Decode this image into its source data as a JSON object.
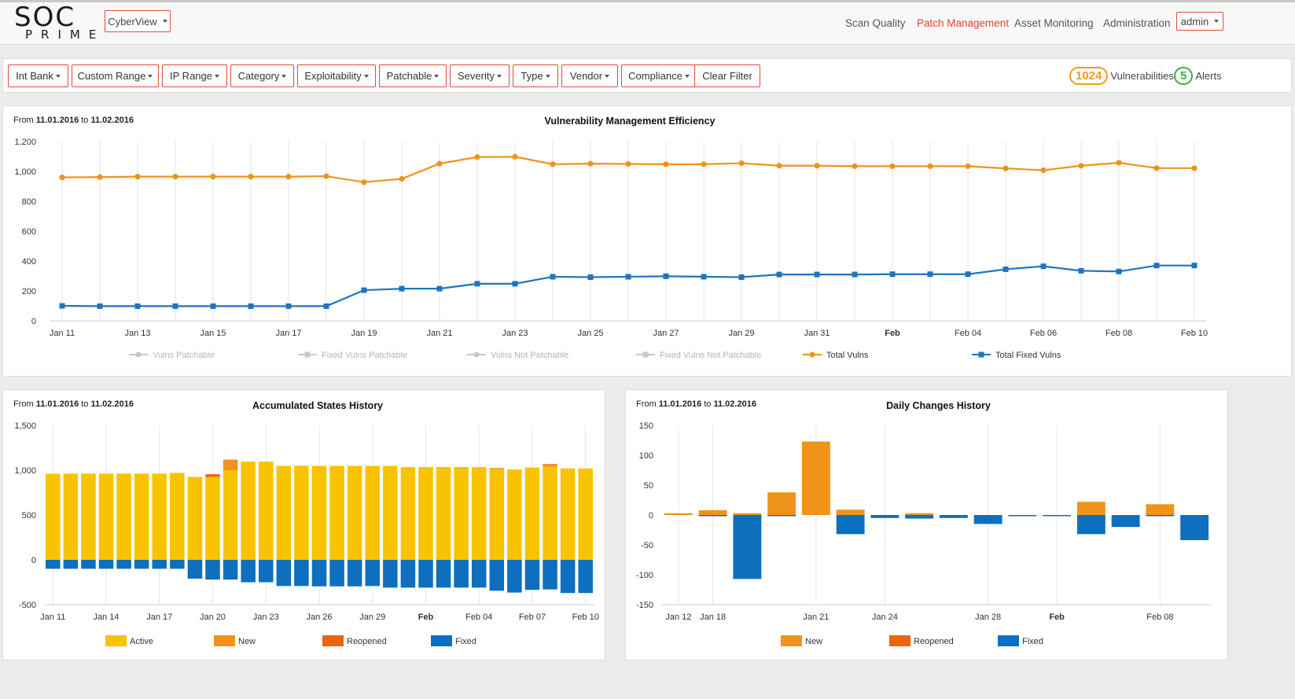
{
  "brand": {
    "line1": "SOC",
    "line2": "PRIME"
  },
  "workspace": {
    "label": "CyberView"
  },
  "nav": {
    "links": [
      "Scan Quality",
      "Patch Management",
      "Asset Monitoring",
      "Administration"
    ],
    "active": "Patch Management",
    "user": "admin"
  },
  "filters": [
    "Int Bank",
    "Custom Range",
    "IP Range",
    "Category",
    "Exploitability",
    "Patchable",
    "Severity",
    "Type",
    "Vendor",
    "Compliance"
  ],
  "clear_filter": "Clear Filter",
  "counters": {
    "vulnerabilities": {
      "value": "1024",
      "label": "Vulnerabilities"
    },
    "alerts": {
      "value": "5",
      "label": "Alerts"
    }
  },
  "colors": {
    "accent": "#e0452f",
    "total_vulns": "#f0931a",
    "total_fixed": "#1f74c0",
    "active": "#f9c300",
    "new": "#f0931a",
    "reopened": "#ec6410",
    "fixed": "#0e6fbf"
  },
  "date_range": {
    "prefix": "From",
    "from": "11.01.2016",
    "mid": "to",
    "to": "11.02.2016"
  },
  "chart_data": [
    {
      "type": "line",
      "title": "Vulnerability Management Efficiency",
      "x": [
        "Jan 11",
        "Jan 12",
        "Jan 13",
        "Jan 14",
        "Jan 15",
        "Jan 16",
        "Jan 17",
        "Jan 18",
        "Jan 19",
        "Jan 20",
        "Jan 21",
        "Jan 22",
        "Jan 23",
        "Jan 24",
        "Jan 25",
        "Jan 26",
        "Jan 27",
        "Jan 28",
        "Jan 29",
        "Jan 30",
        "Jan 31",
        "Feb 01",
        "Feb 02",
        "Feb 03",
        "Feb 04",
        "Feb 05",
        "Feb 06",
        "Feb 07",
        "Feb 08",
        "Feb 09",
        "Feb 10"
      ],
      "tick_labels": [
        "Jan 11",
        "Jan 13",
        "Jan 15",
        "Jan 17",
        "Jan 19",
        "Jan 21",
        "Jan 23",
        "Jan 25",
        "Jan 27",
        "Jan 29",
        "Jan 31",
        "Feb",
        "Feb 04",
        "Feb 06",
        "Feb 08",
        "Feb 10"
      ],
      "ylim": [
        0,
        1200
      ],
      "yticks": [
        "0",
        "200",
        "400",
        "600",
        "800",
        "1,000",
        "1,200"
      ],
      "series": [
        {
          "name": "Total Vulns",
          "values": [
            960,
            962,
            965,
            965,
            965,
            965,
            965,
            968,
            928,
            950,
            1052,
            1096,
            1098,
            1048,
            1052,
            1050,
            1048,
            1048,
            1055,
            1038,
            1038,
            1035,
            1035,
            1035,
            1035,
            1020,
            1008,
            1038,
            1058,
            1022,
            1022
          ]
        },
        {
          "name": "Total Fixed Vulns",
          "values": [
            100,
            98,
            98,
            98,
            98,
            98,
            98,
            98,
            205,
            215,
            215,
            248,
            248,
            295,
            292,
            295,
            298,
            295,
            292,
            310,
            310,
            310,
            312,
            312,
            312,
            345,
            365,
            335,
            330,
            370,
            370
          ]
        }
      ],
      "legend": [
        "Vulns Patchable",
        "Fixed Vulns Patchable",
        "Vulns Not Patchable",
        "Fixed Vulns Not Patchable",
        "Total Vulns",
        "Total Fixed Vulns"
      ],
      "legend_hidden": [
        "Vulns Patchable",
        "Fixed Vulns Patchable",
        "Vulns Not Patchable",
        "Fixed Vulns Not Patchable"
      ]
    },
    {
      "type": "bar",
      "stacked": true,
      "title": "Accumulated States History",
      "tick_labels": [
        "Jan 11",
        "Jan 14",
        "Jan 17",
        "Jan 20",
        "Jan 23",
        "Jan 26",
        "Jan 29",
        "Feb",
        "Feb 04",
        "Feb 07",
        "Feb 10"
      ],
      "ylim": [
        -500,
        1500
      ],
      "yticks": [
        "-500",
        "0",
        "500",
        "1,000",
        "1,500"
      ],
      "series": [
        {
          "name": "Active",
          "values": [
            960,
            962,
            962,
            962,
            962,
            962,
            962,
            970,
            925,
            925,
            1000,
            1095,
            1095,
            1048,
            1050,
            1048,
            1048,
            1048,
            1048,
            1048,
            1035,
            1035,
            1035,
            1035,
            1035,
            1015,
            1008,
            1030,
            1040,
            1020,
            1020
          ]
        },
        {
          "name": "New",
          "values": [
            0,
            0,
            0,
            0,
            0,
            0,
            0,
            0,
            0,
            0,
            118,
            0,
            0,
            0,
            0,
            0,
            0,
            0,
            0,
            0,
            0,
            0,
            0,
            0,
            0,
            0,
            0,
            0,
            20,
            0,
            0
          ]
        },
        {
          "name": "Reopened",
          "values": [
            0,
            0,
            0,
            0,
            0,
            0,
            0,
            0,
            0,
            30,
            0,
            0,
            0,
            0,
            0,
            0,
            0,
            0,
            0,
            0,
            0,
            0,
            0,
            0,
            0,
            8,
            0,
            0,
            8,
            0,
            0
          ]
        },
        {
          "name": "Fixed",
          "values": [
            -100,
            -100,
            -100,
            -100,
            -100,
            -100,
            -100,
            -100,
            -210,
            -220,
            -220,
            -250,
            -250,
            -292,
            -292,
            -296,
            -296,
            -296,
            -292,
            -310,
            -310,
            -310,
            -310,
            -310,
            -310,
            -345,
            -365,
            -335,
            -330,
            -370,
            -370
          ]
        }
      ],
      "legend": [
        "Active",
        "New",
        "Reopened",
        "Fixed"
      ]
    },
    {
      "type": "bar",
      "title": "Daily Changes History",
      "tick_labels": [
        "Jan 12",
        "Jan 18",
        "Jan 21",
        "Jan 24",
        "Jan 28",
        "Feb",
        "Feb 08"
      ],
      "ylim": [
        -150,
        150
      ],
      "yticks": [
        "-150",
        "-100",
        "-50",
        "0",
        "50",
        "100",
        "150"
      ],
      "series": [
        {
          "name": "New",
          "values": [
            3,
            8,
            3,
            38,
            123,
            9,
            0,
            3,
            0,
            0,
            0,
            0,
            22,
            0,
            18,
            0
          ]
        },
        {
          "name": "Reopened",
          "values": [
            0,
            0,
            0,
            0,
            0,
            0,
            0,
            0,
            0,
            0,
            0,
            0,
            0,
            0,
            0,
            0
          ]
        },
        {
          "name": "Fixed",
          "values": [
            0,
            -2,
            -107,
            -2,
            0,
            -32,
            -5,
            -6,
            -5,
            -15,
            -2,
            -2,
            -32,
            -20,
            -2,
            -42
          ]
        }
      ],
      "legend": [
        "New",
        "Reopened",
        "Fixed"
      ]
    }
  ]
}
